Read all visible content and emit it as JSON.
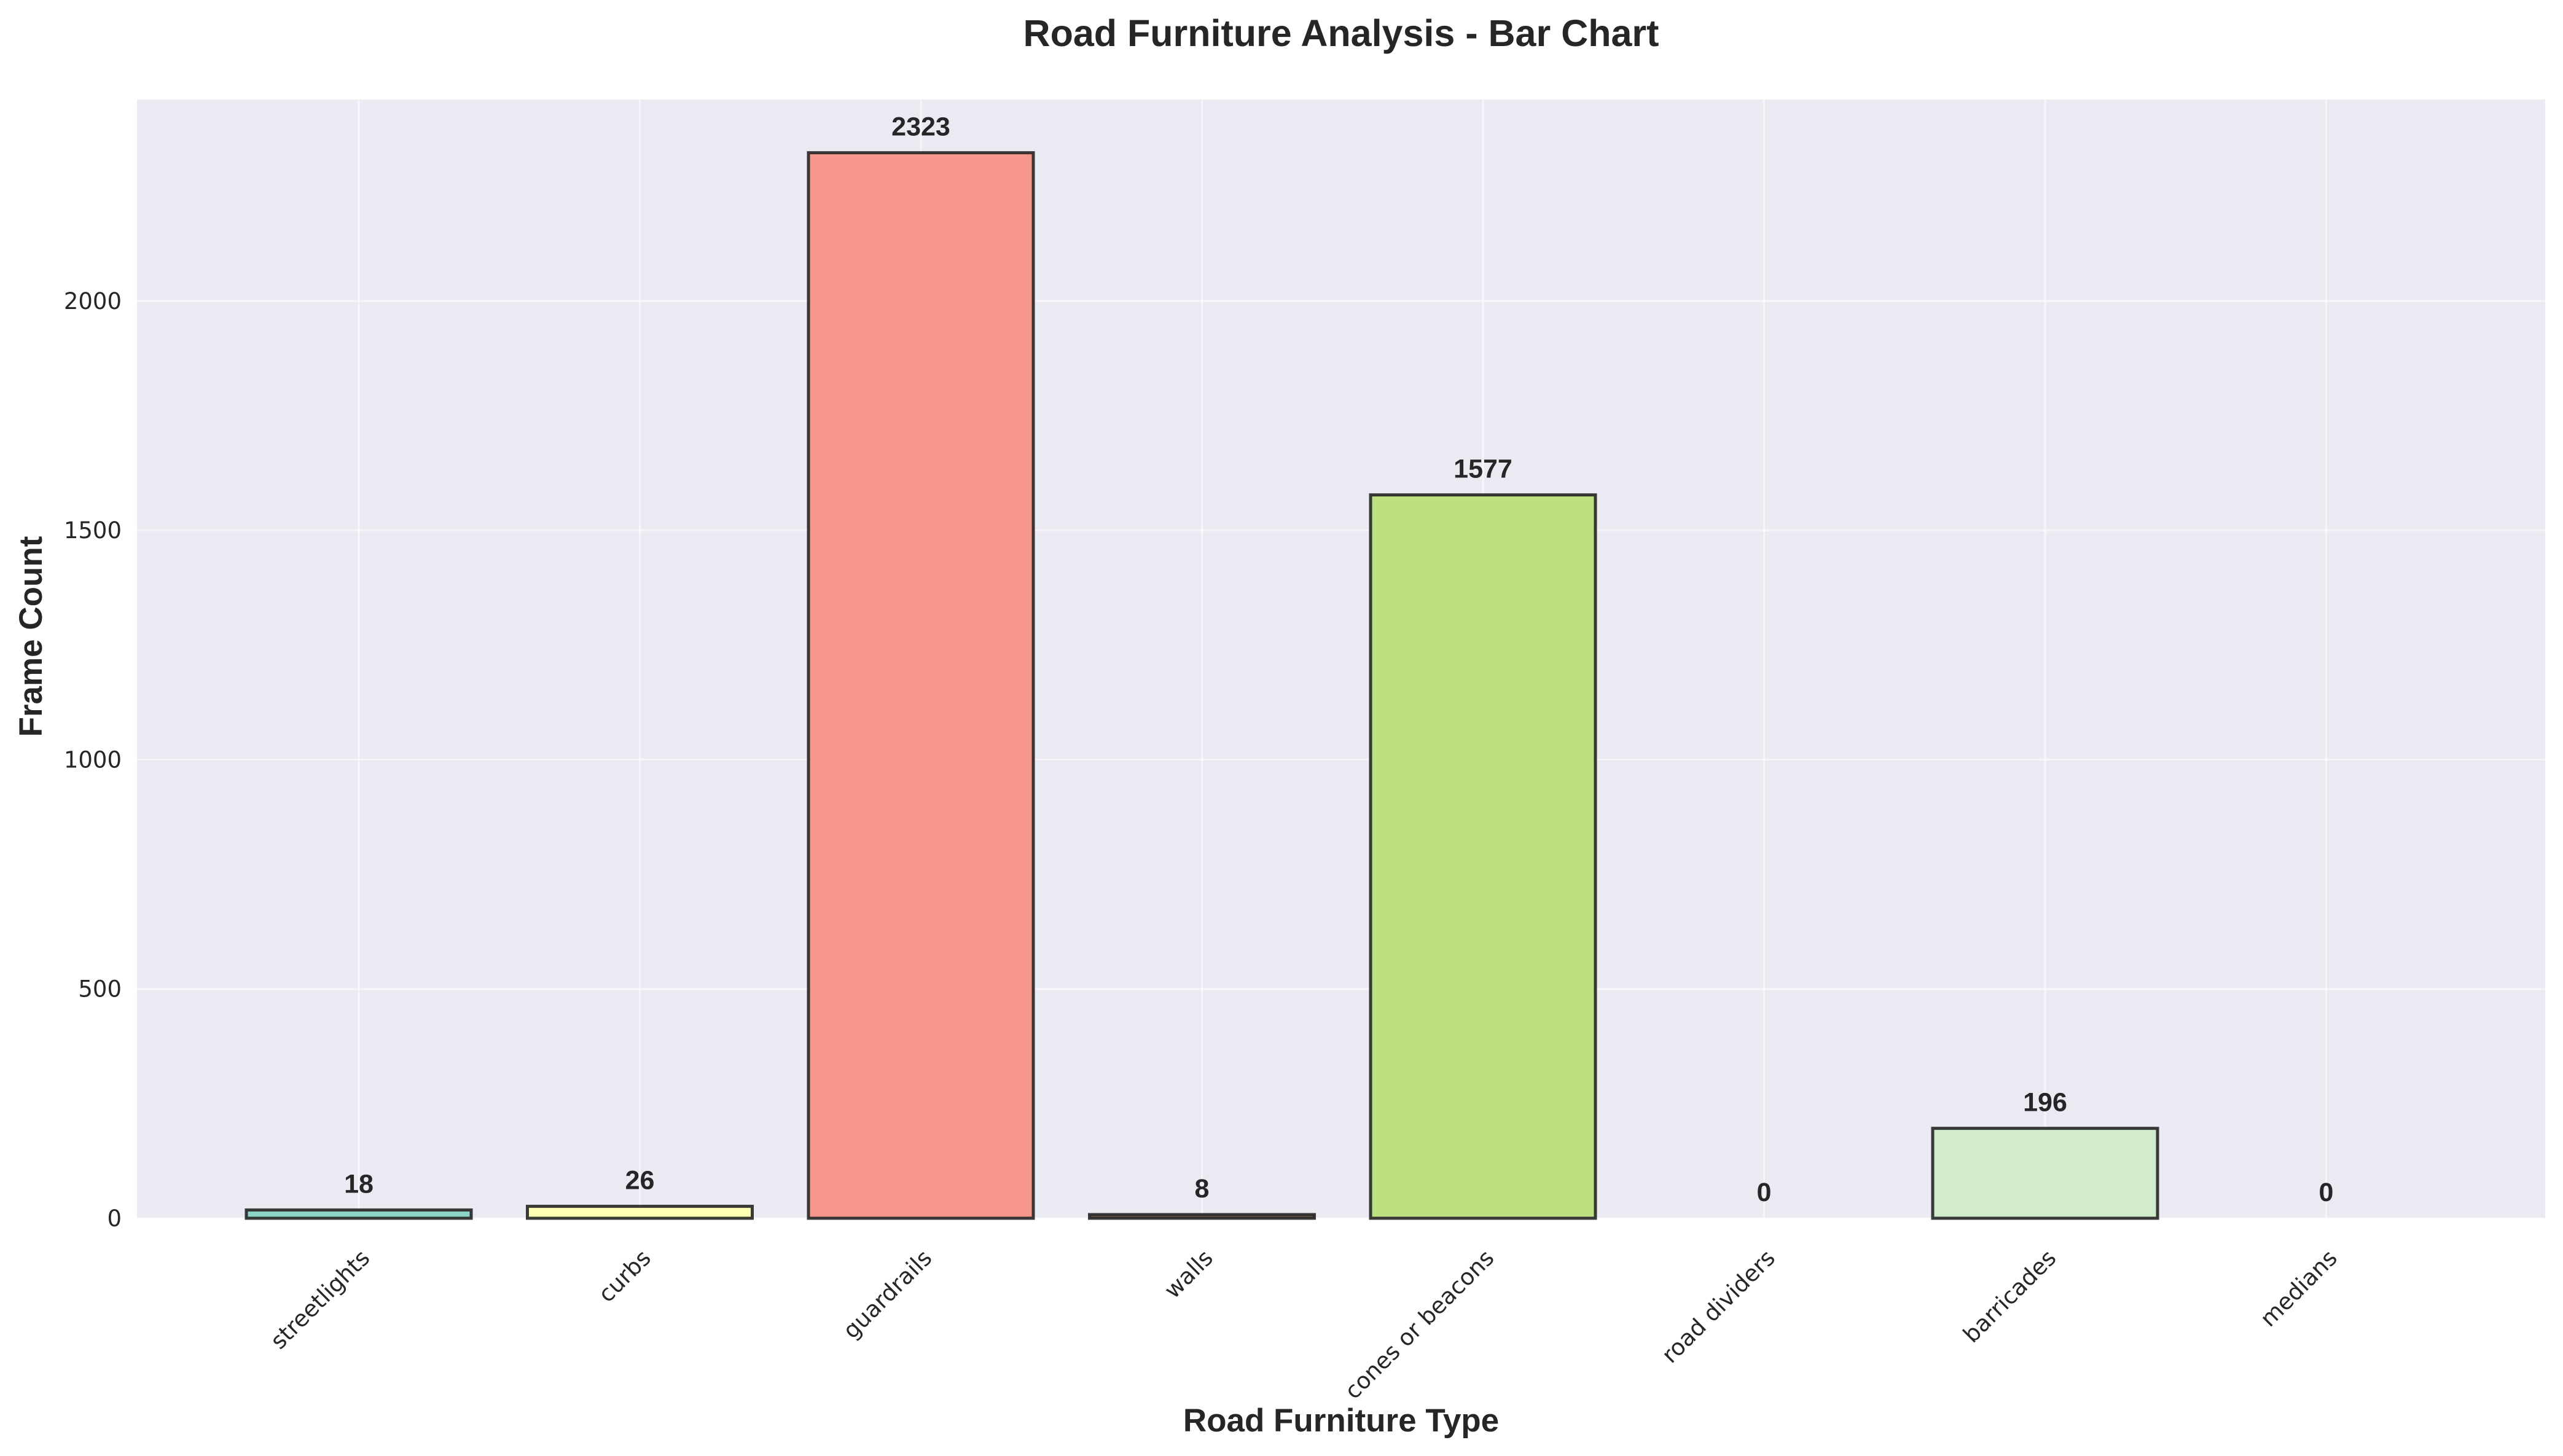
{
  "chart_data": {
    "type": "bar",
    "title": "Road Furniture Analysis - Bar Chart",
    "xlabel": "Road Furniture Type",
    "ylabel": "Frame Count",
    "categories": [
      "streetlights",
      "curbs",
      "guardrails",
      "walls",
      "cones or beacons",
      "road dividers",
      "barricades",
      "medians"
    ],
    "values": [
      18,
      26,
      2323,
      8,
      1577,
      0,
      196,
      0
    ],
    "value_labels": [
      "18",
      "26",
      "2323",
      "8",
      "1577",
      "0",
      "196",
      "0"
    ],
    "colors": [
      "#8dd3c7",
      "#ffffb3",
      "#f7968a",
      "#7d6a50",
      "#bde080",
      "#bebada",
      "#d2ebcc",
      "#bebada"
    ],
    "yticks": [
      0,
      500,
      1000,
      1500,
      2000
    ],
    "ytick_labels": [
      "0",
      "500",
      "1000",
      "1500",
      "2000"
    ],
    "ylim": [
      0,
      2439
    ],
    "grid": true,
    "background": "#eaeaf2"
  }
}
